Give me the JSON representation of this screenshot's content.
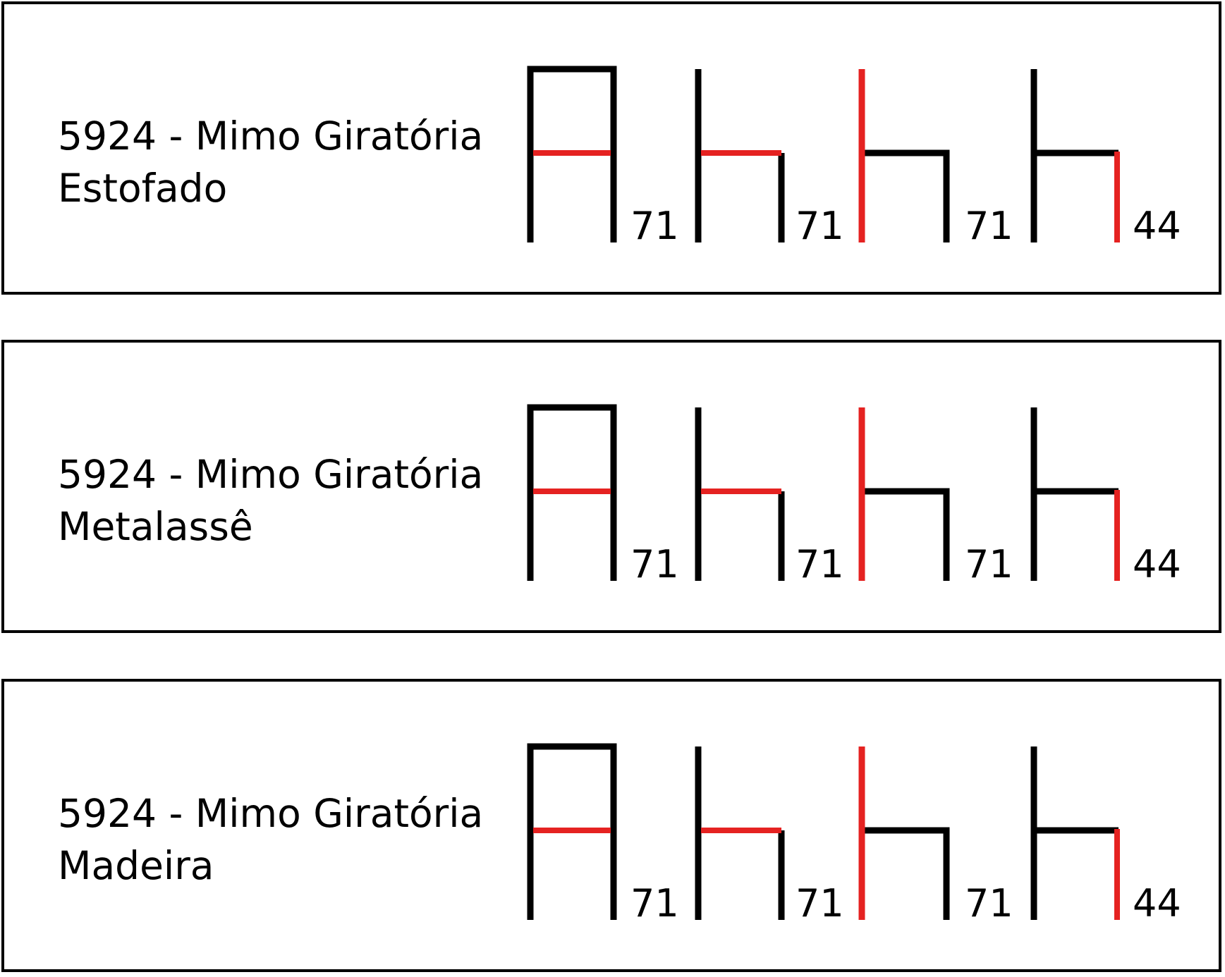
{
  "colors": {
    "frame": "#000000",
    "highlight": "#e52221",
    "background": "#ffffff"
  },
  "panels": [
    {
      "title_line1": "5924 - Mimo Giratória",
      "title_line2": "Estofado",
      "views": [
        {
          "view": "front",
          "dimension": "71",
          "highlighted_part": "seat"
        },
        {
          "view": "side",
          "dimension": "71",
          "highlighted_part": "seat"
        },
        {
          "view": "side",
          "dimension": "71",
          "highlighted_part": "backrest"
        },
        {
          "view": "side",
          "dimension": "44",
          "highlighted_part": "front-leg"
        }
      ]
    },
    {
      "title_line1": "5924 - Mimo Giratória",
      "title_line2": "Metalassê",
      "views": [
        {
          "view": "front",
          "dimension": "71",
          "highlighted_part": "seat"
        },
        {
          "view": "side",
          "dimension": "71",
          "highlighted_part": "seat"
        },
        {
          "view": "side",
          "dimension": "71",
          "highlighted_part": "backrest"
        },
        {
          "view": "side",
          "dimension": "44",
          "highlighted_part": "front-leg"
        }
      ]
    },
    {
      "title_line1": "5924 - Mimo Giratória",
      "title_line2": "Madeira",
      "views": [
        {
          "view": "front",
          "dimension": "71",
          "highlighted_part": "seat"
        },
        {
          "view": "side",
          "dimension": "71",
          "highlighted_part": "seat"
        },
        {
          "view": "side",
          "dimension": "71",
          "highlighted_part": "backrest"
        },
        {
          "view": "side",
          "dimension": "44",
          "highlighted_part": "front-leg"
        }
      ]
    }
  ]
}
